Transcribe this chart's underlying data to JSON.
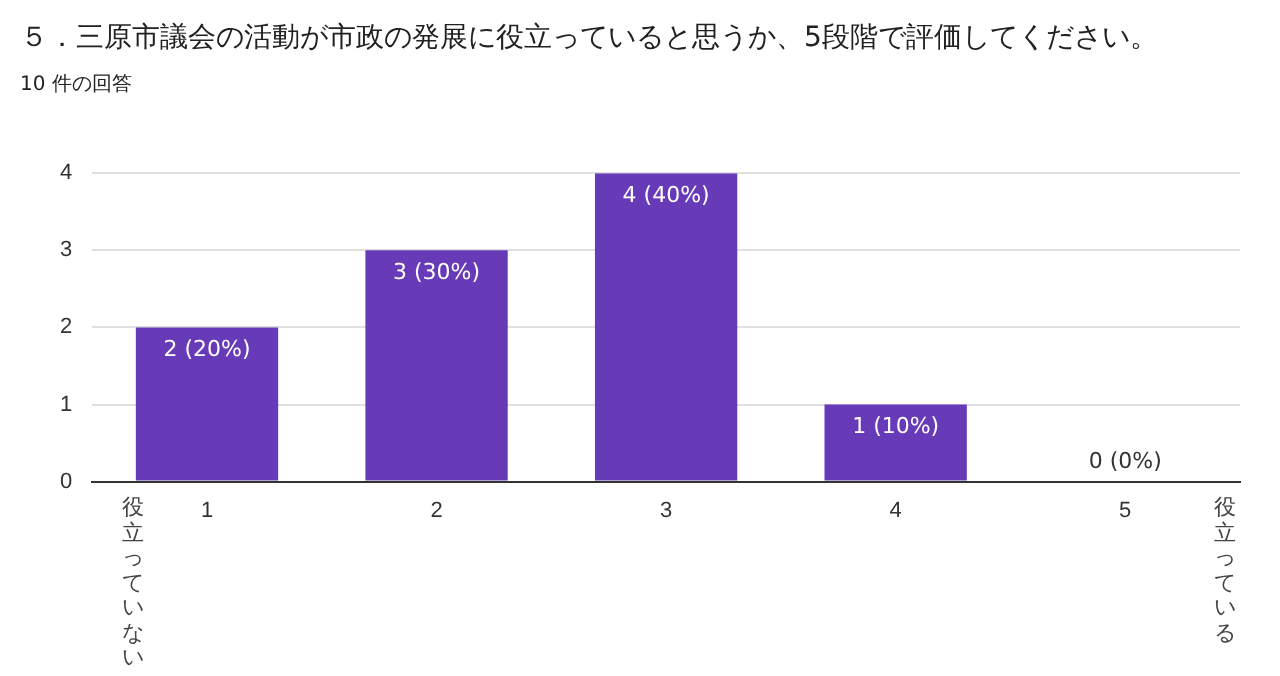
{
  "chart_data": {
    "type": "bar",
    "title": "５．三原市議会の活動が市政の発展に役立っていると思うか、5段階で評価してください。",
    "subtitle": "10 件の回答",
    "categories": [
      "1",
      "2",
      "3",
      "4",
      "5"
    ],
    "values": [
      2,
      3,
      4,
      1,
      0
    ],
    "value_labels": [
      "2 (20%)",
      "3 (30%)",
      "4 (40%)",
      "1 (10%)",
      "0 (0%)"
    ],
    "color": "#673ab7",
    "ylim": [
      0,
      4
    ],
    "yticks": [
      0,
      1,
      2,
      3,
      4
    ],
    "grid": "y",
    "legend": false,
    "annotations": [
      "役立っていない",
      "役立っている"
    ]
  }
}
